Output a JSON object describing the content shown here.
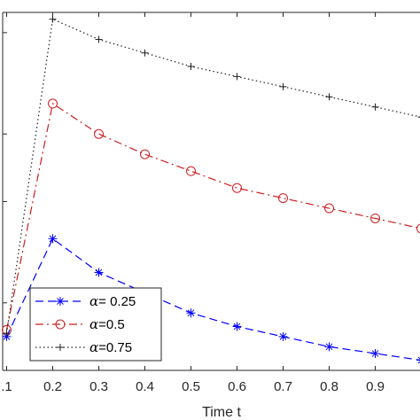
{
  "chart_data": {
    "type": "line",
    "xlabel": "Time t",
    "ylabel": "",
    "title": "",
    "xlim": [
      0.1,
      1.0
    ],
    "ylim": [
      0.0,
      1.06
    ],
    "x": [
      0.1,
      0.2,
      0.3,
      0.4,
      0.5,
      0.6,
      0.7,
      0.8,
      0.9,
      1.0
    ],
    "x_ticks": [
      0.1,
      0.2,
      0.3,
      0.4,
      0.5,
      0.6,
      0.7,
      0.8,
      0.9
    ],
    "x_tick_labels": [
      ".1",
      "0.2",
      "0.3",
      "0.4",
      "0.5",
      "0.6",
      "0.7",
      "0.8",
      "0.9"
    ],
    "grid": false,
    "legend_position": "bottom-left",
    "series": [
      {
        "name": "α= 0.25",
        "legend_prefix": "α",
        "legend_suffix": "= 0.25",
        "color": "#0000ff",
        "dash": "9,5",
        "marker": "asterisk",
        "values": [
          0.1,
          0.39,
          0.29,
          0.23,
          0.17,
          0.13,
          0.1,
          0.07,
          0.05,
          0.03
        ]
      },
      {
        "name": "α=0.5",
        "legend_prefix": "α",
        "legend_suffix": "=0.5",
        "color": "#cc1f1f",
        "dash": "9,4,2,4",
        "marker": "circle",
        "values": [
          0.12,
          0.79,
          0.7,
          0.64,
          0.59,
          0.54,
          0.51,
          0.48,
          0.45,
          0.42
        ]
      },
      {
        "name": "α=0.75",
        "legend_prefix": "α",
        "legend_suffix": "=0.75",
        "color": "#222222",
        "dash": "1.5,3",
        "marker": "plus",
        "values": [
          0.11,
          1.04,
          0.98,
          0.94,
          0.9,
          0.87,
          0.84,
          0.81,
          0.78,
          0.75
        ]
      }
    ]
  }
}
